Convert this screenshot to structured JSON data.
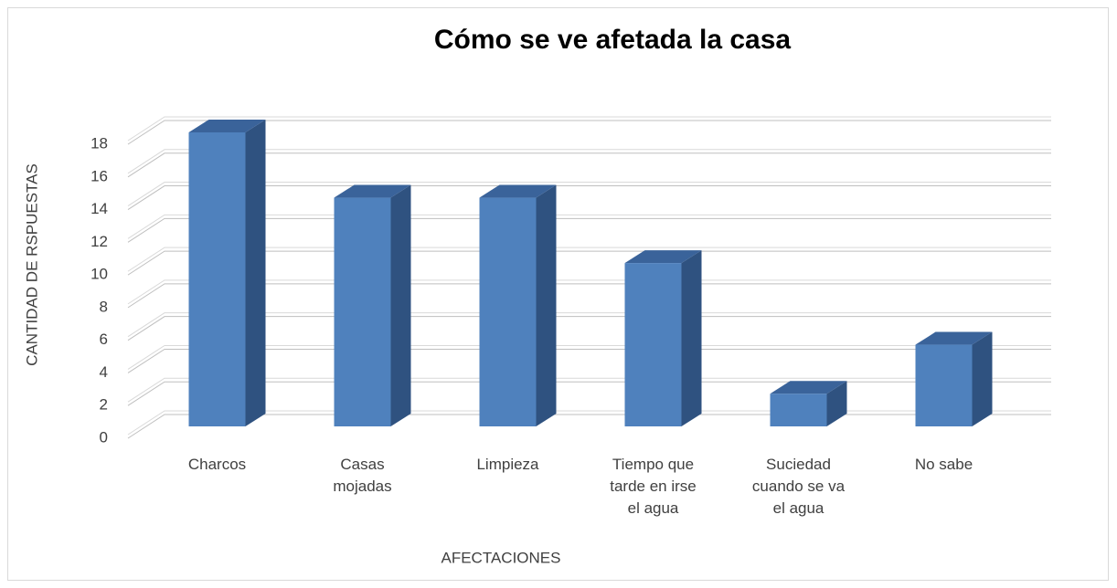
{
  "chart_data": {
    "type": "bar3d",
    "title": "Cómo se ve afetada la casa",
    "x_label": "AFECTACIONES",
    "y_label": "CANTIDAD DE RSPUESTAS",
    "categories": [
      "Charcos",
      "Casas mojadas",
      "Limpieza",
      "Tiempo que tarde en irse el agua",
      "Suciedad cuando se va el agua",
      "No sabe"
    ],
    "values": [
      18,
      14,
      14,
      10,
      2,
      5
    ],
    "color": "#4f81bd",
    "ylim": [
      0,
      18
    ],
    "yticks": [
      0,
      2,
      4,
      6,
      8,
      10,
      12,
      14,
      16,
      18
    ],
    "grid": true
  }
}
